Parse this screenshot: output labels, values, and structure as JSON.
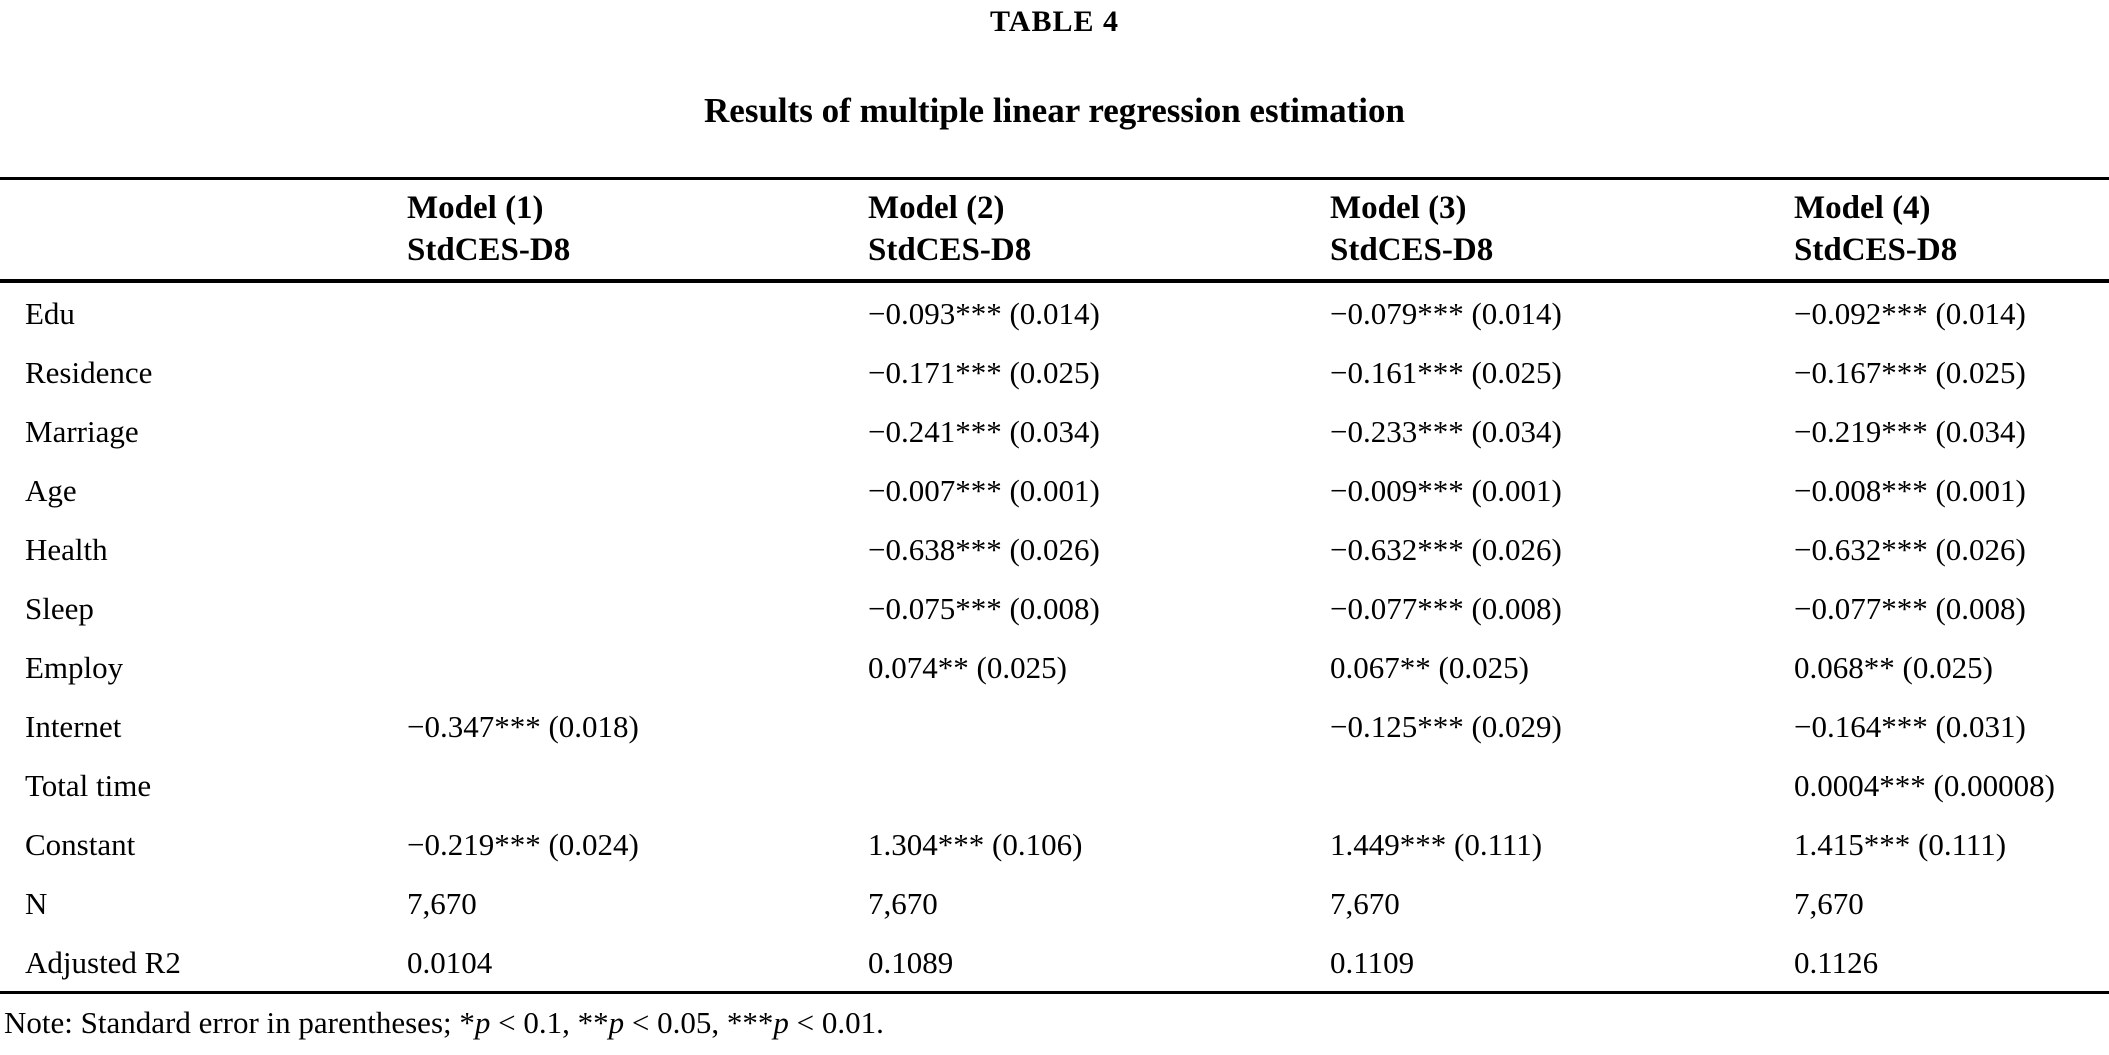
{
  "table": {
    "title": "TABLE 4",
    "subtitle": "Results of multiple linear regression estimation",
    "columns": [
      {
        "line1": "Model (1)",
        "line2": "StdCES-D8"
      },
      {
        "line1": "Model (2)",
        "line2": "StdCES-D8"
      },
      {
        "line1": "Model (3)",
        "line2": "StdCES-D8"
      },
      {
        "line1": "Model (4)",
        "line2": "StdCES-D8"
      }
    ],
    "rows": [
      {
        "label": "Edu",
        "m1": "",
        "m2": "−0.093*** (0.014)",
        "m3": "−0.079*** (0.014)",
        "m4": "−0.092*** (0.014)"
      },
      {
        "label": "Residence",
        "m1": "",
        "m2": "−0.171*** (0.025)",
        "m3": "−0.161*** (0.025)",
        "m4": "−0.167*** (0.025)"
      },
      {
        "label": "Marriage",
        "m1": "",
        "m2": "−0.241*** (0.034)",
        "m3": "−0.233*** (0.034)",
        "m4": "−0.219*** (0.034)"
      },
      {
        "label": "Age",
        "m1": "",
        "m2": "−0.007*** (0.001)",
        "m3": "−0.009*** (0.001)",
        "m4": "−0.008*** (0.001)"
      },
      {
        "label": "Health",
        "m1": "",
        "m2": "−0.638*** (0.026)",
        "m3": "−0.632*** (0.026)",
        "m4": "−0.632*** (0.026)"
      },
      {
        "label": "Sleep",
        "m1": "",
        "m2": "−0.075*** (0.008)",
        "m3": "−0.077*** (0.008)",
        "m4": "−0.077*** (0.008)"
      },
      {
        "label": "Employ",
        "m1": "",
        "m2": "0.074** (0.025)",
        "m3": "0.067** (0.025)",
        "m4": "0.068** (0.025)"
      },
      {
        "label": "Internet",
        "m1": "−0.347*** (0.018)",
        "m2": "",
        "m3": "−0.125*** (0.029)",
        "m4": "−0.164*** (0.031)"
      },
      {
        "label": "Total time",
        "m1": "",
        "m2": "",
        "m3": "",
        "m4": "0.0004*** (0.00008)"
      },
      {
        "label": "Constant",
        "m1": "−0.219*** (0.024)",
        "m2": "1.304*** (0.106)",
        "m3": "1.449*** (0.111)",
        "m4": "1.415*** (0.111)"
      },
      {
        "label": "N",
        "m1": "7,670",
        "m2": "7,670",
        "m3": "7,670",
        "m4": "7,670"
      },
      {
        "label": "Adjusted R2",
        "m1": "0.0104",
        "m2": "0.1089",
        "m3": "0.1109",
        "m4": "0.1126"
      }
    ],
    "note_parts": [
      {
        "t": "Note: Standard error in parentheses; ",
        "i": false
      },
      {
        "t": "*",
        "i": false
      },
      {
        "t": "p",
        "i": true
      },
      {
        "t": " < 0.1, ",
        "i": false
      },
      {
        "t": "**",
        "i": false
      },
      {
        "t": "p",
        "i": true
      },
      {
        "t": " < 0.05, ",
        "i": false
      },
      {
        "t": "***",
        "i": false
      },
      {
        "t": "p",
        "i": true
      },
      {
        "t": " < 0.01.",
        "i": false
      }
    ],
    "text_color": "#000000",
    "background_color": "#ffffff"
  }
}
